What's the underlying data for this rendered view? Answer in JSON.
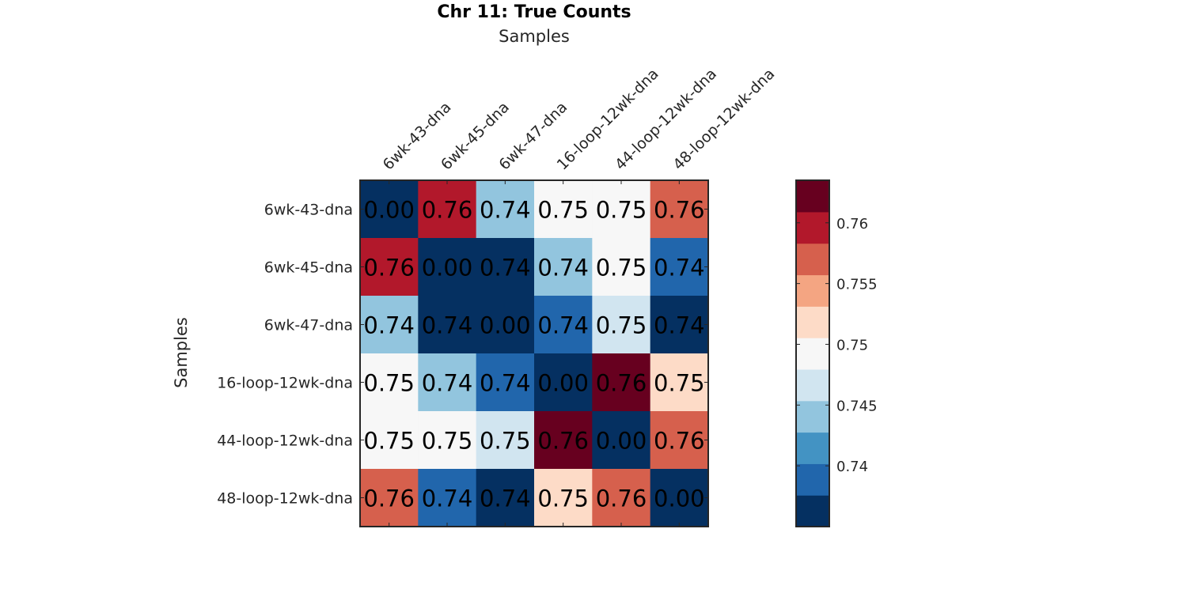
{
  "chart_data": {
    "type": "heatmap",
    "title": "Chr 11: True Counts",
    "xlabel": "Samples",
    "ylabel": "Samples",
    "x_categories": [
      "6wk-43-dna",
      "6wk-45-dna",
      "6wk-47-dna",
      "16-loop-12wk-dna",
      "44-loop-12wk-dna",
      "48-loop-12wk-dna"
    ],
    "y_categories": [
      "6wk-43-dna",
      "6wk-45-dna",
      "6wk-47-dna",
      "16-loop-12wk-dna",
      "44-loop-12wk-dna",
      "48-loop-12wk-dna"
    ],
    "values": [
      [
        0.0,
        0.7598,
        0.7445,
        0.75,
        0.7502,
        0.757
      ],
      [
        0.7598,
        0.0,
        0.737,
        0.7445,
        0.7502,
        0.739
      ],
      [
        0.7445,
        0.737,
        0.0,
        0.739,
        0.746,
        0.737
      ],
      [
        0.75,
        0.7445,
        0.739,
        0.0,
        0.762,
        0.753
      ],
      [
        0.7502,
        0.7502,
        0.746,
        0.762,
        0.0,
        0.757
      ],
      [
        0.757,
        0.739,
        0.737,
        0.753,
        0.757,
        0.0
      ]
    ],
    "cell_labels": [
      [
        "0.00",
        "0.76",
        "0.74",
        "0.75",
        "0.75",
        "0.76"
      ],
      [
        "0.76",
        "0.00",
        "0.74",
        "0.74",
        "0.75",
        "0.74"
      ],
      [
        "0.74",
        "0.74",
        "0.00",
        "0.74",
        "0.75",
        "0.74"
      ],
      [
        "0.75",
        "0.74",
        "0.74",
        "0.00",
        "0.76",
        "0.75"
      ],
      [
        "0.75",
        "0.75",
        "0.75",
        "0.76",
        "0.00",
        "0.76"
      ],
      [
        "0.76",
        "0.74",
        "0.74",
        "0.75",
        "0.76",
        "0.00"
      ]
    ],
    "colorbar": {
      "range": [
        0.735,
        0.7635
      ],
      "colors": [
        "#053061",
        "#2166ac",
        "#4393c3",
        "#92c5de",
        "#d1e5f0",
        "#f7f7f7",
        "#fddbc7",
        "#f4a582",
        "#d6604d",
        "#b2182b",
        "#67001f"
      ],
      "ticks": [
        0.74,
        0.745,
        0.75,
        0.755,
        0.76
      ],
      "tick_labels": [
        "0.74",
        "0.745",
        "0.75",
        "0.755",
        "0.76"
      ]
    }
  }
}
